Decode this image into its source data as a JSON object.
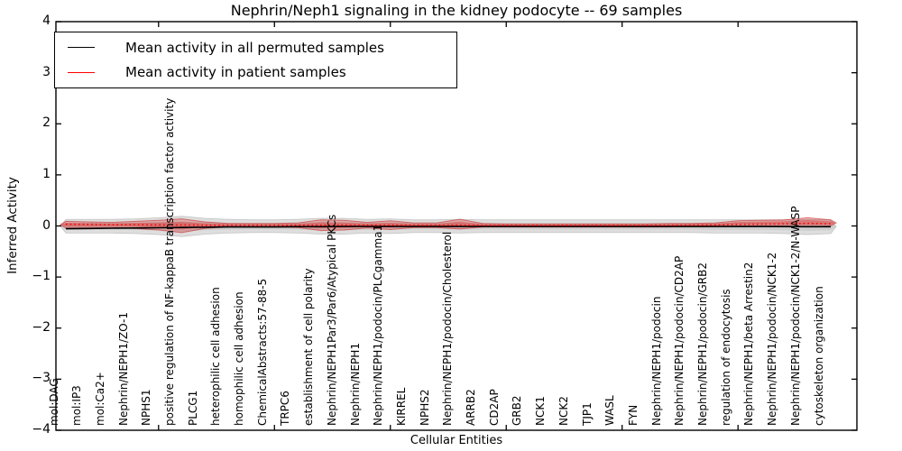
{
  "title": "Nephrin/Neph1 signaling in the kidney podocyte -- 69 samples",
  "legend": {
    "items": [
      {
        "label": "Mean activity in all permuted samples",
        "color": "#000000"
      },
      {
        "label": "Mean activity in patient samples",
        "color": "#ff0000"
      }
    ]
  },
  "colors": {
    "axis": "#000000",
    "permuted_line": "#000000",
    "patient_line": "#ff0000",
    "permuted_band": "rgba(0,0,0,0.13)",
    "patient_band": "rgba(214,39,40,0.30)",
    "patient_band_edge": "rgba(200,30,30,0.55)"
  },
  "chart_data": {
    "type": "violin-band-line",
    "title": "Nephrin/Neph1 signaling in the kidney podocyte -- 69 samples",
    "xlabel": "Cellular Entities",
    "ylabel": "Inferred Activity",
    "ylim": [
      -4,
      4
    ],
    "yticks": [
      4,
      3,
      2,
      1,
      0,
      -1,
      -2,
      -3,
      -4
    ],
    "ytick_labels": [
      "4",
      "3",
      "2",
      "1",
      "0",
      "−1",
      "−2",
      "−3",
      "−4"
    ],
    "xtick_positions_every": 5,
    "legend_position": "upper left",
    "grid": false,
    "categories": [
      "mol:DAG",
      "mol:IP3",
      "mol:Ca2+",
      "Nephrin/NEPH1/ZO-1",
      "NPHS1",
      "positive regulation of NF-kappaB transcription factor activity",
      "PLCG1",
      "heterophilic cell adhesion",
      "homophilic cell adhesion",
      "ChemicalAbstracts:57-88-5",
      "TRPC6",
      "establishment of cell polarity",
      "Nephrin/NEPH1Par3/Par6/Atypical PKCs",
      "Nephrin/NEPH1",
      "Nephrin/NEPH1/podocin/PLCgamma1",
      "KIRREL",
      "NPHS2",
      "Nephrin/NEPH1/podocin/Cholesterol",
      "ARRB2",
      "CD2AP",
      "GRB2",
      "NCK1",
      "NCK2",
      "TJP1",
      "WASL",
      "FYN",
      "Nephrin/NEPH1/podocin",
      "Nephrin/NEPH1/podocin/CD2AP",
      "Nephrin/NEPH1/podocin/GRB2",
      "regulation of endocytosis",
      "Nephrin/NEPH1/beta Arrestin2",
      "Nephrin/NEPH1/podocin/NCK1-2",
      "Nephrin/NEPH1/podocin/NCK1-2/N-WASP",
      "cytoskeleton organization"
    ],
    "series": [
      {
        "name": "Mean activity in all permuted samples",
        "values": [
          -0.055,
          -0.05,
          -0.045,
          -0.04,
          -0.035,
          -0.03,
          -0.025,
          -0.02,
          -0.02,
          -0.02,
          -0.015,
          -0.015,
          -0.01,
          -0.01,
          -0.01,
          -0.01,
          -0.01,
          -0.01,
          -0.01,
          -0.01,
          -0.01,
          -0.01,
          -0.01,
          -0.01,
          -0.01,
          -0.01,
          -0.01,
          -0.01,
          -0.01,
          -0.01,
          -0.01,
          -0.012,
          -0.015,
          -0.015
        ]
      },
      {
        "name": "Mean activity in patient samples",
        "values": [
          0.035,
          0.03,
          0.025,
          0.025,
          0.02,
          0.02,
          0.015,
          0.015,
          0.015,
          0.015,
          0.015,
          0.015,
          0.015,
          0.015,
          0.015,
          0.012,
          0.012,
          0.015,
          0.01,
          0.01,
          0.01,
          0.01,
          0.01,
          0.01,
          0.01,
          0.01,
          0.012,
          0.015,
          0.02,
          0.03,
          0.035,
          0.04,
          0.05,
          0.04
        ]
      }
    ],
    "bands": [
      {
        "name": "permuted-sample-spread",
        "top": [
          0.13,
          0.13,
          0.13,
          0.14,
          0.16,
          0.19,
          0.15,
          0.13,
          0.12,
          0.12,
          0.13,
          0.15,
          0.15,
          0.13,
          0.14,
          0.12,
          0.12,
          0.13,
          0.12,
          0.12,
          0.12,
          0.12,
          0.12,
          0.12,
          0.12,
          0.12,
          0.12,
          0.12,
          0.12,
          0.12,
          0.12,
          0.12,
          0.13,
          0.12
        ],
        "bottom": [
          -0.14,
          -0.14,
          -0.14,
          -0.15,
          -0.17,
          -0.21,
          -0.16,
          -0.14,
          -0.13,
          -0.13,
          -0.14,
          -0.16,
          -0.16,
          -0.14,
          -0.15,
          -0.13,
          -0.13,
          -0.14,
          -0.13,
          -0.13,
          -0.13,
          -0.13,
          -0.13,
          -0.13,
          -0.13,
          -0.13,
          -0.13,
          -0.13,
          -0.14,
          -0.14,
          -0.14,
          -0.15,
          -0.17,
          -0.15
        ]
      },
      {
        "name": "patient-sample-spread",
        "top": [
          0.09,
          0.08,
          0.07,
          0.09,
          0.11,
          0.14,
          0.08,
          0.05,
          0.05,
          0.05,
          0.06,
          0.12,
          0.11,
          0.07,
          0.1,
          0.06,
          0.06,
          0.13,
          0.05,
          0.04,
          0.04,
          0.04,
          0.04,
          0.04,
          0.04,
          0.04,
          0.05,
          0.05,
          0.06,
          0.1,
          0.11,
          0.12,
          0.16,
          0.12
        ],
        "bottom": [
          -0.04,
          -0.04,
          -0.03,
          -0.05,
          -0.08,
          -0.13,
          -0.05,
          -0.02,
          -0.02,
          -0.02,
          -0.03,
          -0.09,
          -0.08,
          -0.04,
          -0.07,
          -0.03,
          -0.03,
          -0.06,
          -0.02,
          -0.02,
          -0.02,
          -0.02,
          -0.02,
          -0.02,
          -0.02,
          -0.02,
          -0.02,
          -0.01,
          -0.01,
          0.0,
          0.0,
          0.0,
          -0.02,
          0.0
        ]
      }
    ]
  }
}
